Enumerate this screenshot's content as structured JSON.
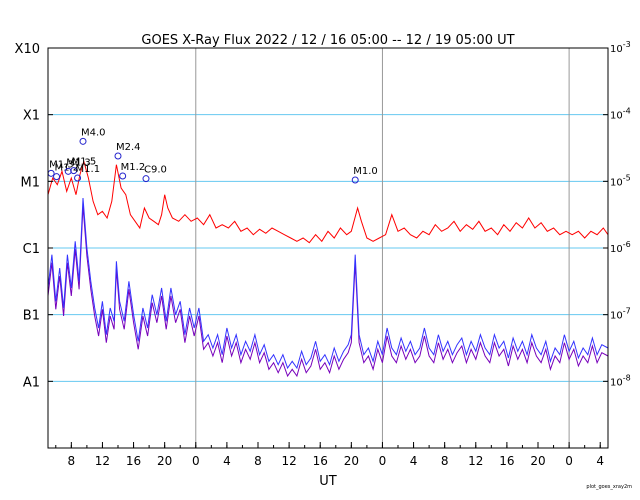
{
  "chart_data": {
    "type": "line",
    "title": "GOES X-Ray Flux   2022 / 12 / 16   05:00 -- 12 / 19   05:00   UT",
    "xlabel": "UT",
    "footer": "plot_goes_xray2m",
    "x_start_hour": 5,
    "x_range_hours": 72,
    "x_ticks": [
      {
        "t": 3,
        "label": "8"
      },
      {
        "t": 7,
        "label": "12"
      },
      {
        "t": 11,
        "label": "16"
      },
      {
        "t": 15,
        "label": "20"
      },
      {
        "t": 19,
        "label": "0"
      },
      {
        "t": 23,
        "label": "4"
      },
      {
        "t": 27,
        "label": "8"
      },
      {
        "t": 31,
        "label": "12"
      },
      {
        "t": 35,
        "label": "16"
      },
      {
        "t": 39,
        "label": "20"
      },
      {
        "t": 43,
        "label": "0"
      },
      {
        "t": 47,
        "label": "4"
      },
      {
        "t": 51,
        "label": "8"
      },
      {
        "t": 55,
        "label": "12"
      },
      {
        "t": 59,
        "label": "16"
      },
      {
        "t": 63,
        "label": "20"
      },
      {
        "t": 67,
        "label": "0"
      },
      {
        "t": 71,
        "label": "4"
      }
    ],
    "day_boundaries": [
      19,
      43,
      67
    ],
    "ylim_log10": [
      -9,
      -3
    ],
    "flare_class_labels": [
      {
        "exp": -3,
        "label": "X10"
      },
      {
        "exp": -4,
        "label": "X1"
      },
      {
        "exp": -5,
        "label": "M1"
      },
      {
        "exp": -6,
        "label": "C1"
      },
      {
        "exp": -7,
        "label": "B1"
      },
      {
        "exp": -8,
        "label": "A1"
      }
    ],
    "right_axis_labels": [
      {
        "exp": -3,
        "label": "10^-3"
      },
      {
        "exp": -4,
        "label": "10^-4"
      },
      {
        "exp": -5,
        "label": "10^-5"
      },
      {
        "exp": -6,
        "label": "10^-6"
      },
      {
        "exp": -7,
        "label": "10^-7"
      },
      {
        "exp": -8,
        "label": "10^-8"
      }
    ],
    "grid_lines_exp": [
      -4,
      -5,
      -6,
      -7,
      -8
    ],
    "colors": {
      "long": "#ff0000",
      "short": "#3333ff",
      "short_secondary": "#7700bb",
      "grid": "#66c8f0",
      "day_line": "#999999",
      "marker": "#2222cc"
    },
    "series": [
      {
        "key": "long",
        "points": [
          [
            0,
            -5.2
          ],
          [
            0.6,
            -4.95
          ],
          [
            1.2,
            -5.05
          ],
          [
            1.8,
            -4.85
          ],
          [
            2.4,
            -5.15
          ],
          [
            3,
            -4.95
          ],
          [
            3.6,
            -5.2
          ],
          [
            4.1,
            -4.9
          ],
          [
            4.6,
            -4.7
          ],
          [
            5.2,
            -4.95
          ],
          [
            5.8,
            -5.3
          ],
          [
            6.4,
            -5.5
          ],
          [
            7,
            -5.45
          ],
          [
            7.6,
            -5.55
          ],
          [
            8.2,
            -5.3
          ],
          [
            8.8,
            -4.75
          ],
          [
            9.4,
            -5.1
          ],
          [
            10,
            -5.2
          ],
          [
            10.6,
            -5.5
          ],
          [
            11.2,
            -5.6
          ],
          [
            11.8,
            -5.7
          ],
          [
            12.4,
            -5.4
          ],
          [
            13,
            -5.55
          ],
          [
            13.6,
            -5.6
          ],
          [
            14.2,
            -5.65
          ],
          [
            14.6,
            -5.5
          ],
          [
            15,
            -5.2
          ],
          [
            15.4,
            -5.4
          ],
          [
            16,
            -5.55
          ],
          [
            16.8,
            -5.6
          ],
          [
            17.6,
            -5.5
          ],
          [
            18.4,
            -5.6
          ],
          [
            19.2,
            -5.55
          ],
          [
            20,
            -5.65
          ],
          [
            20.8,
            -5.5
          ],
          [
            21.6,
            -5.7
          ],
          [
            22.4,
            -5.65
          ],
          [
            23.2,
            -5.7
          ],
          [
            24,
            -5.6
          ],
          [
            24.8,
            -5.75
          ],
          [
            25.6,
            -5.7
          ],
          [
            26.4,
            -5.8
          ],
          [
            27.2,
            -5.72
          ],
          [
            28,
            -5.78
          ],
          [
            28.8,
            -5.7
          ],
          [
            29.6,
            -5.75
          ],
          [
            30.4,
            -5.8
          ],
          [
            31.2,
            -5.85
          ],
          [
            32,
            -5.9
          ],
          [
            32.8,
            -5.85
          ],
          [
            33.6,
            -5.92
          ],
          [
            34.4,
            -5.8
          ],
          [
            35.2,
            -5.9
          ],
          [
            36,
            -5.75
          ],
          [
            36.8,
            -5.85
          ],
          [
            37.6,
            -5.7
          ],
          [
            38.4,
            -5.8
          ],
          [
            39,
            -5.75
          ],
          [
            39.8,
            -5.4
          ],
          [
            40.3,
            -5.6
          ],
          [
            41,
            -5.85
          ],
          [
            41.8,
            -5.9
          ],
          [
            42.6,
            -5.85
          ],
          [
            43.4,
            -5.8
          ],
          [
            44.2,
            -5.5
          ],
          [
            45,
            -5.75
          ],
          [
            45.8,
            -5.7
          ],
          [
            46.6,
            -5.8
          ],
          [
            47.4,
            -5.85
          ],
          [
            48.2,
            -5.75
          ],
          [
            49,
            -5.8
          ],
          [
            49.8,
            -5.65
          ],
          [
            50.6,
            -5.75
          ],
          [
            51.4,
            -5.7
          ],
          [
            52.2,
            -5.6
          ],
          [
            53,
            -5.75
          ],
          [
            53.8,
            -5.65
          ],
          [
            54.6,
            -5.72
          ],
          [
            55.4,
            -5.6
          ],
          [
            56.2,
            -5.75
          ],
          [
            57,
            -5.7
          ],
          [
            57.8,
            -5.8
          ],
          [
            58.6,
            -5.65
          ],
          [
            59.4,
            -5.75
          ],
          [
            60.2,
            -5.62
          ],
          [
            61,
            -5.7
          ],
          [
            61.8,
            -5.55
          ],
          [
            62.6,
            -5.7
          ],
          [
            63.4,
            -5.62
          ],
          [
            64.2,
            -5.75
          ],
          [
            65,
            -5.7
          ],
          [
            65.8,
            -5.8
          ],
          [
            66.6,
            -5.75
          ],
          [
            67.4,
            -5.8
          ],
          [
            68.2,
            -5.75
          ],
          [
            69,
            -5.85
          ],
          [
            69.8,
            -5.75
          ],
          [
            70.6,
            -5.8
          ],
          [
            71.4,
            -5.7
          ],
          [
            72,
            -5.8
          ]
        ]
      },
      {
        "key": "short",
        "points": [
          [
            0,
            -6.6
          ],
          [
            0.5,
            -6.1
          ],
          [
            1,
            -6.8
          ],
          [
            1.5,
            -6.3
          ],
          [
            2,
            -6.9
          ],
          [
            2.5,
            -6.1
          ],
          [
            3,
            -6.6
          ],
          [
            3.5,
            -5.9
          ],
          [
            4,
            -6.5
          ],
          [
            4.5,
            -5.25
          ],
          [
            5,
            -6.0
          ],
          [
            5.5,
            -6.5
          ],
          [
            6,
            -6.9
          ],
          [
            6.5,
            -7.2
          ],
          [
            7,
            -6.8
          ],
          [
            7.5,
            -7.3
          ],
          [
            8,
            -6.9
          ],
          [
            8.5,
            -7.1
          ],
          [
            8.8,
            -6.2
          ],
          [
            9.2,
            -6.8
          ],
          [
            9.8,
            -7.1
          ],
          [
            10.4,
            -6.5
          ],
          [
            11,
            -7.0
          ],
          [
            11.6,
            -7.4
          ],
          [
            12.2,
            -6.9
          ],
          [
            12.8,
            -7.2
          ],
          [
            13.4,
            -6.7
          ],
          [
            14,
            -7.0
          ],
          [
            14.6,
            -6.6
          ],
          [
            15.2,
            -7.1
          ],
          [
            15.8,
            -6.6
          ],
          [
            16.4,
            -7.0
          ],
          [
            17,
            -6.8
          ],
          [
            17.6,
            -7.3
          ],
          [
            18.2,
            -6.9
          ],
          [
            18.8,
            -7.2
          ],
          [
            19.4,
            -6.9
          ],
          [
            20,
            -7.4
          ],
          [
            20.6,
            -7.3
          ],
          [
            21.2,
            -7.5
          ],
          [
            21.8,
            -7.3
          ],
          [
            22.4,
            -7.6
          ],
          [
            23,
            -7.2
          ],
          [
            23.6,
            -7.5
          ],
          [
            24.2,
            -7.3
          ],
          [
            24.8,
            -7.6
          ],
          [
            25.4,
            -7.4
          ],
          [
            26,
            -7.55
          ],
          [
            26.6,
            -7.3
          ],
          [
            27.2,
            -7.6
          ],
          [
            27.8,
            -7.45
          ],
          [
            28.4,
            -7.7
          ],
          [
            29,
            -7.6
          ],
          [
            29.6,
            -7.75
          ],
          [
            30.2,
            -7.6
          ],
          [
            30.8,
            -7.8
          ],
          [
            31.4,
            -7.7
          ],
          [
            32,
            -7.8
          ],
          [
            32.6,
            -7.55
          ],
          [
            33.2,
            -7.75
          ],
          [
            33.8,
            -7.65
          ],
          [
            34.4,
            -7.4
          ],
          [
            35,
            -7.7
          ],
          [
            35.6,
            -7.6
          ],
          [
            36.2,
            -7.75
          ],
          [
            36.8,
            -7.5
          ],
          [
            37.4,
            -7.7
          ],
          [
            38,
            -7.55
          ],
          [
            38.6,
            -7.45
          ],
          [
            39,
            -7.3
          ],
          [
            39.5,
            -6.1
          ],
          [
            40,
            -7.3
          ],
          [
            40.6,
            -7.6
          ],
          [
            41.2,
            -7.5
          ],
          [
            41.8,
            -7.7
          ],
          [
            42.4,
            -7.4
          ],
          [
            43,
            -7.6
          ],
          [
            43.6,
            -7.2
          ],
          [
            44.2,
            -7.5
          ],
          [
            44.8,
            -7.6
          ],
          [
            45.4,
            -7.35
          ],
          [
            46,
            -7.55
          ],
          [
            46.6,
            -7.4
          ],
          [
            47.2,
            -7.6
          ],
          [
            47.8,
            -7.5
          ],
          [
            48.4,
            -7.2
          ],
          [
            49,
            -7.5
          ],
          [
            49.6,
            -7.6
          ],
          [
            50.2,
            -7.3
          ],
          [
            50.8,
            -7.55
          ],
          [
            51.4,
            -7.4
          ],
          [
            52,
            -7.6
          ],
          [
            52.6,
            -7.45
          ],
          [
            53.2,
            -7.35
          ],
          [
            53.8,
            -7.6
          ],
          [
            54.4,
            -7.4
          ],
          [
            55,
            -7.55
          ],
          [
            55.6,
            -7.3
          ],
          [
            56.2,
            -7.5
          ],
          [
            56.8,
            -7.6
          ],
          [
            57.4,
            -7.3
          ],
          [
            58,
            -7.5
          ],
          [
            58.6,
            -7.4
          ],
          [
            59.2,
            -7.65
          ],
          [
            59.8,
            -7.35
          ],
          [
            60.4,
            -7.55
          ],
          [
            61,
            -7.4
          ],
          [
            61.6,
            -7.6
          ],
          [
            62.2,
            -7.3
          ],
          [
            62.8,
            -7.5
          ],
          [
            63.4,
            -7.6
          ],
          [
            64,
            -7.4
          ],
          [
            64.6,
            -7.7
          ],
          [
            65.2,
            -7.5
          ],
          [
            65.8,
            -7.6
          ],
          [
            66.4,
            -7.3
          ],
          [
            67,
            -7.55
          ],
          [
            67.6,
            -7.4
          ],
          [
            68.2,
            -7.65
          ],
          [
            68.8,
            -7.5
          ],
          [
            69.4,
            -7.6
          ],
          [
            70,
            -7.35
          ],
          [
            70.6,
            -7.6
          ],
          [
            71.2,
            -7.45
          ],
          [
            72,
            -7.5
          ]
        ]
      }
    ],
    "flare_markers": [
      {
        "t": 0.4,
        "exp": -4.88,
        "label": "M1.3"
      },
      {
        "t": 1.1,
        "exp": -4.93,
        "label": "M1.2"
      },
      {
        "t": 2.6,
        "exp": -4.85,
        "label": "M1.3"
      },
      {
        "t": 3.3,
        "exp": -4.84,
        "label": "M1.5"
      },
      {
        "t": 3.8,
        "exp": -4.95,
        "label": "M1.1"
      },
      {
        "t": 4.5,
        "exp": -4.4,
        "label": "M4.0"
      },
      {
        "t": 9.0,
        "exp": -4.62,
        "label": "M2.4"
      },
      {
        "t": 9.6,
        "exp": -4.92,
        "label": "M1.2"
      },
      {
        "t": 12.6,
        "exp": -4.96,
        "label": "C9.0"
      },
      {
        "t": 39.5,
        "exp": -4.98,
        "label": "M1.0"
      }
    ]
  }
}
